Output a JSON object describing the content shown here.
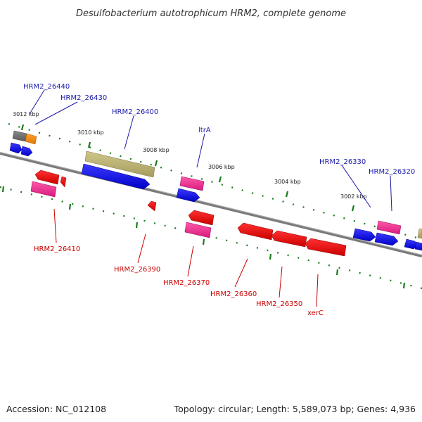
{
  "title": "Desulfobacterium autotrophicum HRM2, complete genome",
  "footer": {
    "accession": "Accession: NC_012108",
    "summary": "Topology: circular; Length: 5,589,073 bp; Genes: 4,936"
  },
  "scale_labels": [
    {
      "id": "kbp-3012",
      "text": "3012 kbp"
    },
    {
      "id": "kbp-3010",
      "text": "3010 kbp"
    },
    {
      "id": "kbp-3008",
      "text": "3008 kbp"
    },
    {
      "id": "kbp-3006",
      "text": "3006 kbp"
    },
    {
      "id": "kbp-3004",
      "text": "3004 kbp"
    },
    {
      "id": "kbp-3002",
      "text": "3002 kbp"
    }
  ],
  "gene_labels": {
    "top": [
      "HRM2_26440",
      "HRM2_26430",
      "HRM2_26400",
      "ltrA",
      "HRM2_26330",
      "HRM2_26320"
    ],
    "bottom": [
      "HRM2_26410",
      "HRM2_26390",
      "HRM2_26370",
      "HRM2_26360",
      "HRM2_26350",
      "xerC"
    ]
  },
  "colors": {
    "forward_label": "#1a1aaa",
    "reverse_label": "#cc0000",
    "cds_blue": "#0000ee",
    "cds_red": "#ee0000",
    "cds_pink": "#ee3399",
    "cds_tan": "#b8ae70",
    "cds_orange": "#ff8c00",
    "cds_gray": "#707070",
    "backbone": "#7a7a7a",
    "tick_green": "#1a7a1a"
  }
}
